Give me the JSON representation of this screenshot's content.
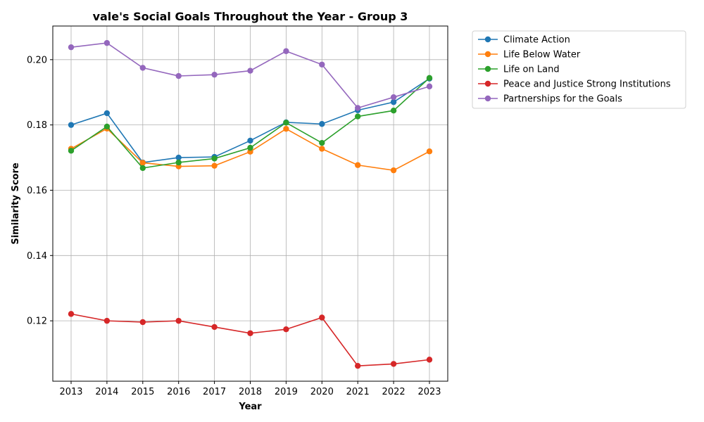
{
  "chart_data": {
    "type": "line",
    "title": "vale's Social Goals Throughout the Year - Group 3",
    "xlabel": "Year",
    "ylabel": "Similarity Score",
    "x": [
      "2013",
      "2014",
      "2015",
      "2016",
      "2017",
      "2018",
      "2019",
      "2020",
      "2021",
      "2022",
      "2023"
    ],
    "yticks": [
      "0.12",
      "0.14",
      "0.16",
      "0.18",
      "0.20"
    ],
    "ylim": [
      0.1015,
      0.2103
    ],
    "grid": true,
    "legend_position": "outside-top-right",
    "series": [
      {
        "name": "Climate Action",
        "color": "#1f77b4",
        "values": [
          0.18,
          0.1836,
          0.1685,
          0.17,
          0.1702,
          0.1752,
          0.1808,
          0.1803,
          0.1845,
          0.187,
          0.1942
        ]
      },
      {
        "name": "Life Below Water",
        "color": "#ff7f0e",
        "values": [
          0.1727,
          0.1789,
          0.1684,
          0.1673,
          0.1675,
          0.1718,
          0.1788,
          0.1727,
          0.1677,
          0.1661,
          0.1719
        ]
      },
      {
        "name": "Life on Land",
        "color": "#2ca02c",
        "values": [
          0.1721,
          0.1795,
          0.1668,
          0.1685,
          0.1697,
          0.173,
          0.1807,
          0.1745,
          0.1826,
          0.1844,
          0.1944
        ]
      },
      {
        "name": "Peace and Justice Strong Institutions",
        "color": "#d62728",
        "values": [
          0.1221,
          0.12,
          0.1196,
          0.12,
          0.1181,
          0.1162,
          0.1174,
          0.121,
          0.1062,
          0.1068,
          0.1081
        ]
      },
      {
        "name": "Partnerships for the Goals",
        "color": "#9467bd",
        "values": [
          0.2038,
          0.2051,
          0.1975,
          0.195,
          0.1954,
          0.1966,
          0.2026,
          0.1985,
          0.1852,
          0.1885,
          0.1918
        ]
      }
    ]
  }
}
